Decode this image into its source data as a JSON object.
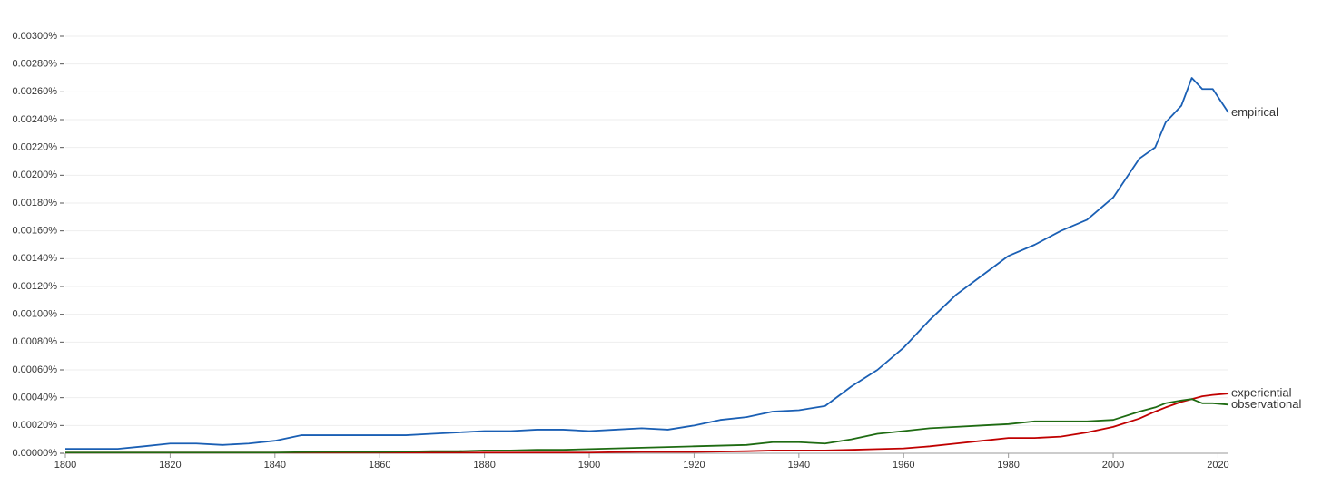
{
  "chart_data": {
    "type": "line",
    "x": [
      1800,
      1805,
      1810,
      1815,
      1820,
      1825,
      1830,
      1835,
      1840,
      1845,
      1850,
      1855,
      1860,
      1865,
      1870,
      1875,
      1880,
      1885,
      1890,
      1895,
      1900,
      1905,
      1910,
      1915,
      1920,
      1925,
      1930,
      1935,
      1940,
      1945,
      1950,
      1955,
      1960,
      1965,
      1970,
      1975,
      1980,
      1985,
      1990,
      1995,
      2000,
      2005,
      2008,
      2010,
      2013,
      2015,
      2017,
      2019,
      2022
    ],
    "series": [
      {
        "name": "empirical",
        "color": "#1a5fb4",
        "values": [
          3.2e-05,
          3.2e-05,
          3.2e-05,
          5e-05,
          7e-05,
          7e-05,
          6e-05,
          7e-05,
          9e-05,
          0.00013,
          0.00013,
          0.00013,
          0.00013,
          0.00013,
          0.00014,
          0.00015,
          0.00016,
          0.00016,
          0.00017,
          0.00017,
          0.00016,
          0.00017,
          0.00018,
          0.00017,
          0.0002,
          0.00024,
          0.00026,
          0.0003,
          0.00031,
          0.00034,
          0.00048,
          0.0006,
          0.00076,
          0.00096,
          0.00114,
          0.00128,
          0.00142,
          0.0015,
          0.0016,
          0.00168,
          0.00184,
          0.00212,
          0.0022,
          0.00238,
          0.0025,
          0.0027,
          0.00262,
          0.00262,
          0.00245
        ]
      },
      {
        "name": "experiential",
        "color": "#c00000",
        "values": [
          5e-06,
          5e-06,
          5e-06,
          5e-06,
          5e-06,
          5e-06,
          5e-06,
          5e-06,
          5e-06,
          5e-06,
          5e-06,
          5e-06,
          5e-06,
          5e-06,
          5e-06,
          5e-06,
          5e-06,
          5e-06,
          5e-06,
          5e-06,
          5e-06,
          8e-06,
          1e-05,
          1e-05,
          1e-05,
          1.2e-05,
          1.5e-05,
          2e-05,
          2e-05,
          2e-05,
          2.5e-05,
          3e-05,
          3.5e-05,
          5e-05,
          7e-05,
          9e-05,
          0.00011,
          0.00011,
          0.00012,
          0.00015,
          0.00019,
          0.00025,
          0.0003,
          0.00033,
          0.00037,
          0.00039,
          0.00041,
          0.00042,
          0.00043
        ]
      },
      {
        "name": "observational",
        "color": "#1e6b12",
        "values": [
          5e-06,
          5e-06,
          5e-06,
          5e-06,
          5e-06,
          5e-06,
          5e-06,
          5e-06,
          5e-06,
          8e-06,
          1e-05,
          1e-05,
          1e-05,
          1.2e-05,
          1.5e-05,
          1.5e-05,
          2e-05,
          2e-05,
          2.5e-05,
          2.5e-05,
          3e-05,
          3.5e-05,
          4e-05,
          4.5e-05,
          5e-05,
          5.5e-05,
          6e-05,
          8e-05,
          8e-05,
          7e-05,
          0.0001,
          0.00014,
          0.00016,
          0.00018,
          0.00019,
          0.0002,
          0.00021,
          0.00023,
          0.00023,
          0.00023,
          0.00024,
          0.0003,
          0.00033,
          0.00036,
          0.00038,
          0.00039,
          0.00036,
          0.00036,
          0.00035
        ]
      }
    ],
    "xlim": [
      1800,
      2022
    ],
    "xticks": [
      1800,
      1820,
      1840,
      1860,
      1880,
      1900,
      1920,
      1940,
      1960,
      1980,
      2000,
      2020
    ],
    "ylim": [
      0,
      0.003
    ],
    "yticks": [
      {
        "value": 0,
        "label": "0.00000%"
      },
      {
        "value": 0.0002,
        "label": "0.00020%"
      },
      {
        "value": 0.0004,
        "label": "0.00040%"
      },
      {
        "value": 0.0006,
        "label": "0.00060%"
      },
      {
        "value": 0.0008,
        "label": "0.00080%"
      },
      {
        "value": 0.001,
        "label": "0.00100%"
      },
      {
        "value": 0.0012,
        "label": "0.00120%"
      },
      {
        "value": 0.0014,
        "label": "0.00140%"
      },
      {
        "value": 0.0016,
        "label": "0.00160%"
      },
      {
        "value": 0.0018,
        "label": "0.00180%"
      },
      {
        "value": 0.002,
        "label": "0.00200%"
      },
      {
        "value": 0.0022,
        "label": "0.00220%"
      },
      {
        "value": 0.0024,
        "label": "0.00240%"
      },
      {
        "value": 0.0026,
        "label": "0.00260%"
      },
      {
        "value": 0.0028,
        "label": "0.00280%"
      },
      {
        "value": 0.003,
        "label": "0.00300%"
      }
    ],
    "grid": true
  }
}
